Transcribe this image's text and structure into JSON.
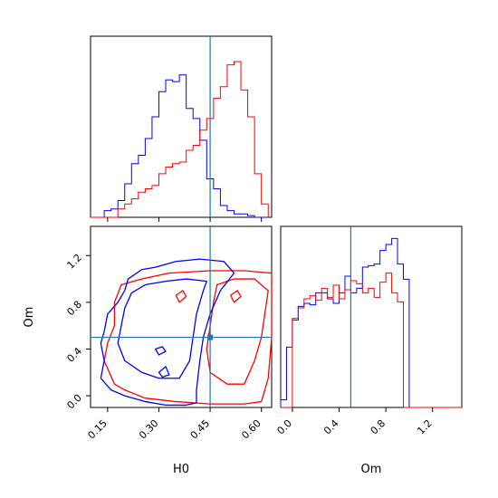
{
  "chart_data": {
    "type": "corner",
    "parameters": [
      "H0",
      "Om"
    ],
    "truths": {
      "H0": 0.45,
      "Om": 0.5
    },
    "truth_color": "#1f77b4",
    "series": [
      {
        "color": "#0000ff"
      },
      {
        "color": "#ff0000"
      }
    ],
    "panels": {
      "h0_marginal": {
        "xlim": [
          0.1,
          0.63
        ],
        "tick_values": [
          0.15,
          0.3,
          0.45,
          0.6
        ],
        "bin_edges": [
          0.1,
          0.12,
          0.14,
          0.16,
          0.18,
          0.2,
          0.22,
          0.24,
          0.26,
          0.28,
          0.3,
          0.32,
          0.34,
          0.36,
          0.38,
          0.4,
          0.42,
          0.44,
          0.46,
          0.48,
          0.5,
          0.52,
          0.54,
          0.56,
          0.58,
          0.6,
          0.62
        ],
        "blue_heights": [
          0,
          0,
          0.04,
          0.05,
          0.1,
          0.2,
          0.32,
          0.37,
          0.47,
          0.6,
          0.75,
          0.82,
          0.81,
          0.85,
          0.65,
          0.59,
          0.46,
          0.23,
          0.17,
          0.07,
          0.04,
          0.02,
          0.02,
          0.01,
          0,
          0
        ],
        "red_heights": [
          0,
          0,
          0,
          0,
          0.05,
          0.08,
          0.11,
          0.15,
          0.17,
          0.19,
          0.26,
          0.3,
          0.32,
          0.33,
          0.4,
          0.43,
          0.52,
          0.59,
          0.71,
          0.78,
          0.91,
          0.93,
          0.76,
          0.6,
          0.26,
          0.08
        ],
        "ylim": [
          0,
          1
        ]
      },
      "om_marginal": {
        "xlim": [
          -0.1,
          1.45
        ],
        "tick_values": [
          0.0,
          0.4,
          0.8,
          1.2
        ],
        "bin_edges": [
          -0.1,
          -0.05,
          0.0,
          0.05,
          0.1,
          0.15,
          0.2,
          0.25,
          0.3,
          0.35,
          0.4,
          0.45,
          0.5,
          0.55,
          0.6,
          0.65,
          0.7,
          0.75,
          0.8,
          0.85,
          0.9,
          0.95,
          1.0,
          1.05,
          1.1,
          1.15,
          1.2,
          1.25,
          1.3,
          1.35,
          1.4,
          1.45
        ],
        "blue_heights": [
          0.05,
          0.4,
          0.58,
          0.67,
          0.69,
          0.68,
          0.76,
          0.76,
          0.72,
          0.69,
          0.76,
          0.87,
          0.76,
          0.79,
          0.93,
          0.94,
          0.95,
          1.04,
          1.08,
          1.12,
          0.95,
          0.85,
          0.0,
          0.0,
          0.0,
          0.0,
          0.0,
          0.0,
          0.0,
          0.0,
          0.0
        ],
        "red_heights": [
          0.0,
          0.0,
          0.59,
          0.66,
          0.72,
          0.74,
          0.71,
          0.79,
          0.73,
          0.81,
          0.72,
          0.78,
          0.84,
          0.82,
          0.76,
          0.79,
          0.73,
          0.83,
          0.89,
          0.76,
          0.7,
          0.0,
          0.0,
          0.0,
          0.0,
          0.0,
          0.0,
          0.0,
          0.0,
          0.0,
          0.0
        ],
        "ylim": [
          0,
          1.2
        ]
      },
      "joint": {
        "xlim": [
          0.1,
          0.63
        ],
        "ylim": [
          -0.1,
          1.45
        ],
        "x_tick_values": [
          0.15,
          0.3,
          0.45,
          0.6
        ],
        "y_tick_values": [
          0.0,
          0.4,
          0.8,
          1.2
        ],
        "blue_contours": [
          [
            [
              0.13,
              0.15
            ],
            [
              0.16,
              0.05
            ],
            [
              0.2,
              0.0
            ],
            [
              0.26,
              -0.05
            ],
            [
              0.32,
              -0.08
            ],
            [
              0.38,
              -0.08
            ],
            [
              0.41,
              -0.06
            ],
            [
              0.41,
              0.05
            ],
            [
              0.42,
              0.3
            ],
            [
              0.43,
              0.5
            ],
            [
              0.45,
              0.7
            ],
            [
              0.48,
              0.9
            ],
            [
              0.52,
              1.05
            ],
            [
              0.49,
              1.15
            ],
            [
              0.42,
              1.17
            ],
            [
              0.35,
              1.15
            ],
            [
              0.29,
              1.1
            ],
            [
              0.25,
              1.08
            ],
            [
              0.21,
              1.0
            ],
            [
              0.2,
              0.9
            ],
            [
              0.18,
              0.8
            ],
            [
              0.15,
              0.7
            ],
            [
              0.14,
              0.55
            ],
            [
              0.13,
              0.45
            ],
            [
              0.14,
              0.3
            ],
            [
              0.13,
              0.15
            ]
          ],
          [
            [
              0.2,
              0.3
            ],
            [
              0.25,
              0.2
            ],
            [
              0.3,
              0.15
            ],
            [
              0.36,
              0.15
            ],
            [
              0.39,
              0.3
            ],
            [
              0.4,
              0.5
            ],
            [
              0.41,
              0.7
            ],
            [
              0.43,
              0.9
            ],
            [
              0.44,
              0.98
            ],
            [
              0.38,
              1.0
            ],
            [
              0.32,
              0.98
            ],
            [
              0.26,
              0.95
            ],
            [
              0.22,
              0.88
            ],
            [
              0.2,
              0.75
            ],
            [
              0.19,
              0.6
            ],
            [
              0.18,
              0.45
            ],
            [
              0.2,
              0.3
            ]
          ],
          [
            [
              0.3,
              0.35
            ],
            [
              0.32,
              0.38
            ],
            [
              0.31,
              0.42
            ],
            [
              0.29,
              0.4
            ],
            [
              0.3,
              0.35
            ]
          ],
          [
            [
              0.31,
              0.16
            ],
            [
              0.33,
              0.18
            ],
            [
              0.32,
              0.25
            ],
            [
              0.3,
              0.2
            ],
            [
              0.31,
              0.16
            ]
          ]
        ],
        "red_contours": [
          [
            [
              0.14,
              0.3
            ],
            [
              0.17,
              0.1
            ],
            [
              0.2,
              0.05
            ],
            [
              0.26,
              -0.02
            ],
            [
              0.35,
              -0.05
            ],
            [
              0.45,
              -0.07
            ],
            [
              0.55,
              -0.07
            ],
            [
              0.6,
              -0.05
            ],
            [
              0.62,
              0.15
            ],
            [
              0.63,
              0.5
            ],
            [
              0.63,
              0.9
            ],
            [
              0.63,
              1.05
            ],
            [
              0.55,
              1.07
            ],
            [
              0.45,
              1.07
            ],
            [
              0.33,
              1.05
            ],
            [
              0.25,
              1.0
            ],
            [
              0.19,
              0.95
            ],
            [
              0.17,
              0.8
            ],
            [
              0.17,
              0.6
            ],
            [
              0.15,
              0.45
            ],
            [
              0.14,
              0.3
            ]
          ],
          [
            [
              0.45,
              0.2
            ],
            [
              0.5,
              0.1
            ],
            [
              0.55,
              0.1
            ],
            [
              0.58,
              0.3
            ],
            [
              0.6,
              0.5
            ],
            [
              0.61,
              0.7
            ],
            [
              0.62,
              0.9
            ],
            [
              0.58,
              1.0
            ],
            [
              0.52,
              1.0
            ],
            [
              0.47,
              0.95
            ],
            [
              0.46,
              0.8
            ],
            [
              0.45,
              0.6
            ],
            [
              0.44,
              0.4
            ],
            [
              0.45,
              0.2
            ]
          ],
          [
            [
              0.36,
              0.8
            ],
            [
              0.38,
              0.85
            ],
            [
              0.37,
              0.9
            ],
            [
              0.35,
              0.86
            ],
            [
              0.36,
              0.8
            ]
          ],
          [
            [
              0.52,
              0.8
            ],
            [
              0.54,
              0.85
            ],
            [
              0.53,
              0.9
            ],
            [
              0.51,
              0.86
            ],
            [
              0.52,
              0.8
            ]
          ]
        ]
      }
    },
    "xlabels": [
      "H0",
      "Om"
    ],
    "ylabel": "Om",
    "h0_tick_labels": [
      "0.15",
      "0.30",
      "0.45",
      "0.60"
    ],
    "om_tick_labels": [
      "0.0",
      "0.4",
      "0.8",
      "1.2"
    ]
  }
}
